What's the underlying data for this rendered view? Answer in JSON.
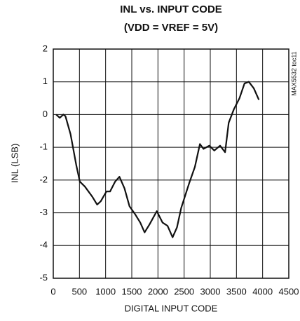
{
  "chart_data": {
    "type": "line",
    "title": "INL vs. INPUT CODE",
    "subtitle": "(VDD = VREF = 5V)",
    "annotation": "MAX5532 toc11",
    "x_label": "DIGITAL INPUT CODE",
    "y_label": "INL (LSB)",
    "xlim": [
      0,
      4500
    ],
    "xticks": [
      0,
      500,
      1000,
      1500,
      2000,
      2500,
      3000,
      3500,
      4000,
      4500
    ],
    "ylim": [
      -5,
      2
    ],
    "yticks": [
      -5,
      -4,
      -3,
      -2,
      -1,
      0,
      1,
      2
    ],
    "grid": true,
    "x": [
      55,
      124,
      192,
      233,
      330,
      440,
      508,
      604,
      742,
      838,
      907,
      1016,
      1085,
      1181,
      1264,
      1360,
      1456,
      1566,
      1662,
      1745,
      1841,
      1978,
      2088,
      2184,
      2280,
      2363,
      2445,
      2596,
      2706,
      2802,
      2871,
      2981,
      3077,
      3187,
      3283,
      3352,
      3448,
      3558,
      3654,
      3736,
      3832,
      3929
    ],
    "series": [
      {
        "name": "INL",
        "color": "#111111",
        "values": [
          0.0,
          -0.1,
          0.0,
          -0.05,
          -0.6,
          -1.55,
          -2.05,
          -2.2,
          -2.5,
          -2.75,
          -2.65,
          -2.35,
          -2.35,
          -2.05,
          -1.9,
          -2.25,
          -2.8,
          -3.05,
          -3.3,
          -3.6,
          -3.35,
          -2.95,
          -3.3,
          -3.4,
          -3.75,
          -3.45,
          -2.85,
          -2.1,
          -1.6,
          -0.9,
          -1.05,
          -0.95,
          -1.1,
          -0.95,
          -1.15,
          -0.25,
          0.15,
          0.5,
          0.95,
          1.0,
          0.8,
          0.45
        ]
      }
    ]
  }
}
